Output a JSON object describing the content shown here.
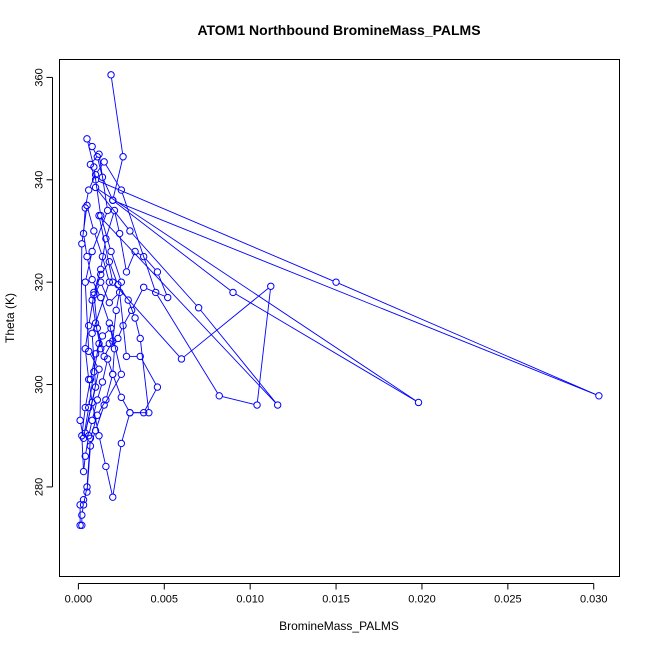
{
  "chart_data": {
    "type": "line",
    "title": "ATOM1 Northbound BromineMass_PALMS",
    "xlabel": "BromineMass_PALMS",
    "ylabel": "Theta (K)",
    "xlim": [
      -0.0011,
      0.0315
    ],
    "ylim": [
      262.5,
      363.5
    ],
    "x_ticks": [
      0.0,
      0.005,
      0.01,
      0.015,
      0.02,
      0.025,
      0.03
    ],
    "x_tick_labels": [
      "0.000",
      "0.005",
      "0.010",
      "0.015",
      "0.020",
      "0.025",
      "0.030"
    ],
    "y_ticks": [
      280,
      300,
      320,
      340,
      360
    ],
    "y_tick_labels": [
      "280",
      "300",
      "320",
      "340",
      "360"
    ],
    "grid": false,
    "legend": false,
    "series_color": "#0000ff",
    "x": [
      0.0019,
      0.0026,
      0.002,
      0.0014,
      0.0011,
      0.0008,
      0.0005,
      0.0009,
      0.0013,
      0.0019,
      0.0025,
      0.0022,
      0.002,
      0.0015,
      0.0011,
      0.0009,
      0.0013,
      0.0016,
      0.0021,
      0.0024,
      0.0028,
      0.0033,
      0.0038,
      0.0046,
      0.0052,
      0.0038,
      0.0031,
      0.0026,
      0.0023,
      0.0018,
      0.0013,
      0.001,
      0.0008,
      0.0013,
      0.0018,
      0.0024,
      0.0028,
      0.0036,
      0.0046,
      0.0038,
      0.003,
      0.0025,
      0.002,
      0.0016,
      0.0012,
      0.0008,
      0.0006,
      0.0004,
      0.0006,
      0.0009,
      0.0013,
      0.0018,
      0.0023,
      0.0029,
      0.0033,
      0.0036,
      0.0041,
      0.003,
      0.0025,
      0.002,
      0.0017,
      0.0014,
      0.0011,
      0.0008,
      0.0006,
      0.0004,
      0.0003,
      0.0002,
      0.0004,
      0.0007,
      0.001,
      0.0014,
      0.0019,
      0.0025,
      0.0015,
      0.001,
      0.0007,
      0.0005,
      0.0003,
      0.0001,
      0.0001,
      0.0002,
      0.0002,
      0.0003,
      0.0005,
      0.0007,
      0.0011,
      0.0016,
      0.002,
      0.0021,
      0.0018,
      0.0013,
      0.0008,
      0.0005,
      0.0003,
      0.0004,
      0.0006,
      0.001,
      0.0015,
      0.0025,
      0.0045,
      0.0082,
      0.0104,
      0.0112,
      0.006,
      0.002,
      0.0012,
      0.0116,
      0.007,
      0.003,
      0.001,
      0.0198,
      0.009,
      0.002,
      0.0303,
      0.015,
      0.001,
      0.0007,
      0.0012,
      0.0017,
      0.0008,
      0.0004,
      0.0006,
      0.0012,
      0.0004,
      0.001,
      0.0008,
      0.0018,
      0.0014,
      0.0009,
      0.0005,
      0.0002,
      0.0001,
      0.0003,
      0.0006,
      0.0009,
      0.0012
    ],
    "y": [
      360.5,
      344.5,
      336.0,
      340.5,
      344.5,
      346.5,
      348.0,
      342.5,
      333.0,
      326.0,
      320.0,
      314.5,
      308.5,
      305.5,
      311.0,
      318.0,
      322.5,
      328.5,
      334.0,
      329.5,
      322.0,
      326.0,
      325.0,
      322.0,
      317.0,
      319.0,
      314.5,
      311.5,
      309.0,
      308.0,
      307.0,
      312.0,
      316.5,
      320.0,
      316.0,
      318.0,
      305.5,
      305.5,
      299.5,
      294.5,
      294.5,
      288.5,
      278.0,
      284.0,
      290.0,
      296.5,
      301.0,
      307.0,
      311.5,
      317.5,
      321.5,
      324.0,
      319.5,
      316.5,
      313.0,
      309.0,
      294.5,
      294.5,
      297.5,
      302.0,
      305.0,
      300.5,
      297.0,
      293.0,
      290.0,
      286.0,
      283.0,
      290.0,
      295.5,
      301.0,
      306.0,
      309.5,
      311.0,
      302.0,
      296.0,
      291.0,
      288.0,
      279.0,
      277.5,
      276.5,
      272.5,
      272.5,
      274.5,
      276.5,
      280.0,
      289.5,
      294.0,
      297.0,
      302.0,
      307.0,
      312.0,
      317.0,
      320.5,
      325.0,
      329.5,
      334.5,
      338.0,
      341.0,
      343.5,
      338.0,
      318.0,
      297.8,
      296.0,
      319.2,
      305.0,
      320.0,
      333.0,
      296.0,
      315.0,
      330.0,
      338.5,
      296.5,
      318.0,
      336.0,
      297.8,
      320.0,
      340.0,
      343.0,
      345.0,
      334.0,
      326.0,
      320.0,
      306.5,
      303.0,
      290.5,
      299.5,
      310.0,
      320.0,
      325.0,
      330.0,
      335.0,
      327.5,
      293.0,
      289.5,
      295.5,
      302.5,
      308.0
    ]
  }
}
